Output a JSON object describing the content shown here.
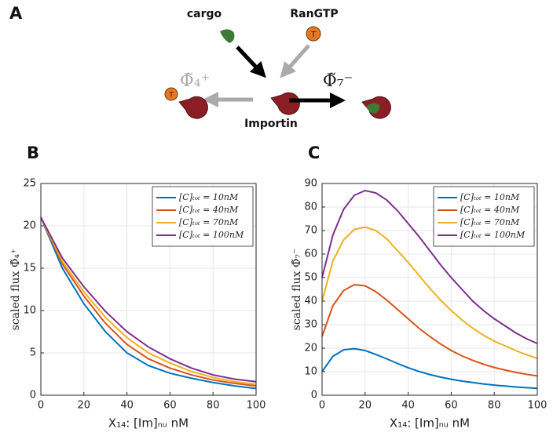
{
  "diagram": {
    "panel_label": "A",
    "cargo": "cargo",
    "rangtp": "RanGTP",
    "importin": "Importin",
    "ran_token": "T",
    "flux_left": "Φ̃₄⁺",
    "flux_right": "Φ̃₇⁻"
  },
  "chart_data": [
    {
      "type": "line",
      "panel_label": "B",
      "xlabel": "X₁₄: [Im]ₙᵤ nM",
      "ylabel": "scaled flux Φ̃₄⁺",
      "x": [
        0,
        10,
        20,
        30,
        40,
        50,
        60,
        70,
        80,
        90,
        100
      ],
      "xlim": [
        0,
        100
      ],
      "xticks": [
        0,
        20,
        40,
        60,
        80,
        100
      ],
      "ylim": [
        0,
        25
      ],
      "yticks": [
        0,
        5,
        10,
        15,
        20,
        25
      ],
      "grid": true,
      "legend": "upper right",
      "series": [
        {
          "name": "[C]ₜₒₜ = 10nM",
          "color": "#0072BD",
          "values": [
            21,
            15,
            10.8,
            7.5,
            5,
            3.5,
            2.6,
            2,
            1.5,
            1.1,
            0.8
          ]
        },
        {
          "name": "[C]ₜₒₜ = 40nM",
          "color": "#D95319",
          "values": [
            21,
            15.5,
            11.7,
            8.5,
            6,
            4.3,
            3.2,
            2.4,
            1.8,
            1.4,
            1.1
          ]
        },
        {
          "name": "[C]ₜₒₜ = 70nM",
          "color": "#EDB120",
          "values": [
            21,
            15.8,
            12.2,
            9.2,
            6.8,
            5,
            3.8,
            2.8,
            2.1,
            1.6,
            1.3
          ]
        },
        {
          "name": "[C]ₜₒₜ = 100nM",
          "color": "#7E2F8E",
          "values": [
            21,
            16.2,
            12.8,
            9.9,
            7.5,
            5.7,
            4.3,
            3.2,
            2.4,
            1.9,
            1.6
          ]
        }
      ]
    },
    {
      "type": "line",
      "panel_label": "C",
      "xlabel": "X₁₄: [Im]ₙᵤ nM",
      "ylabel": "scaled flux Φ̃₇⁻",
      "x": [
        0,
        5,
        10,
        15,
        20,
        25,
        30,
        35,
        40,
        45,
        50,
        55,
        60,
        65,
        70,
        75,
        80,
        85,
        90,
        95,
        100
      ],
      "xlim": [
        0,
        100
      ],
      "xticks": [
        0,
        20,
        40,
        60,
        80,
        100
      ],
      "ylim": [
        0,
        90
      ],
      "yticks": [
        0,
        10,
        20,
        30,
        40,
        50,
        60,
        70,
        80,
        90
      ],
      "grid": true,
      "legend": "upper right",
      "series": [
        {
          "name": "[C]ₜₒₜ = 10nM",
          "color": "#0072BD",
          "values": [
            10,
            16.5,
            19.3,
            19.8,
            19,
            17.3,
            15.5,
            13.5,
            11.7,
            10.1,
            8.8,
            7.7,
            6.8,
            6,
            5.4,
            4.8,
            4.3,
            3.9,
            3.5,
            3.2,
            2.9
          ]
        },
        {
          "name": "[C]ₜₒₜ = 40nM",
          "color": "#D95319",
          "values": [
            25,
            38,
            44.5,
            47,
            46.5,
            44,
            40.5,
            36.5,
            32.5,
            28.5,
            25,
            21.8,
            19,
            16.7,
            14.8,
            13.2,
            11.8,
            10.7,
            9.7,
            8.9,
            8.2
          ]
        },
        {
          "name": "[C]ₜₒₜ = 70nM",
          "color": "#EDB120",
          "values": [
            40,
            57,
            66,
            70.5,
            71.5,
            70,
            66.5,
            61.5,
            56.5,
            51,
            45.5,
            40.5,
            36,
            32,
            28.5,
            25.5,
            23,
            21,
            19,
            17.2,
            15.7
          ]
        },
        {
          "name": "[C]ₜₒₜ = 100nM",
          "color": "#7E2F8E",
          "values": [
            50,
            68,
            79,
            85,
            87,
            86,
            83,
            78.5,
            73,
            67.5,
            61.5,
            55.5,
            50,
            45,
            40,
            36,
            32.5,
            29.5,
            26.5,
            24,
            22
          ]
        }
      ]
    }
  ]
}
